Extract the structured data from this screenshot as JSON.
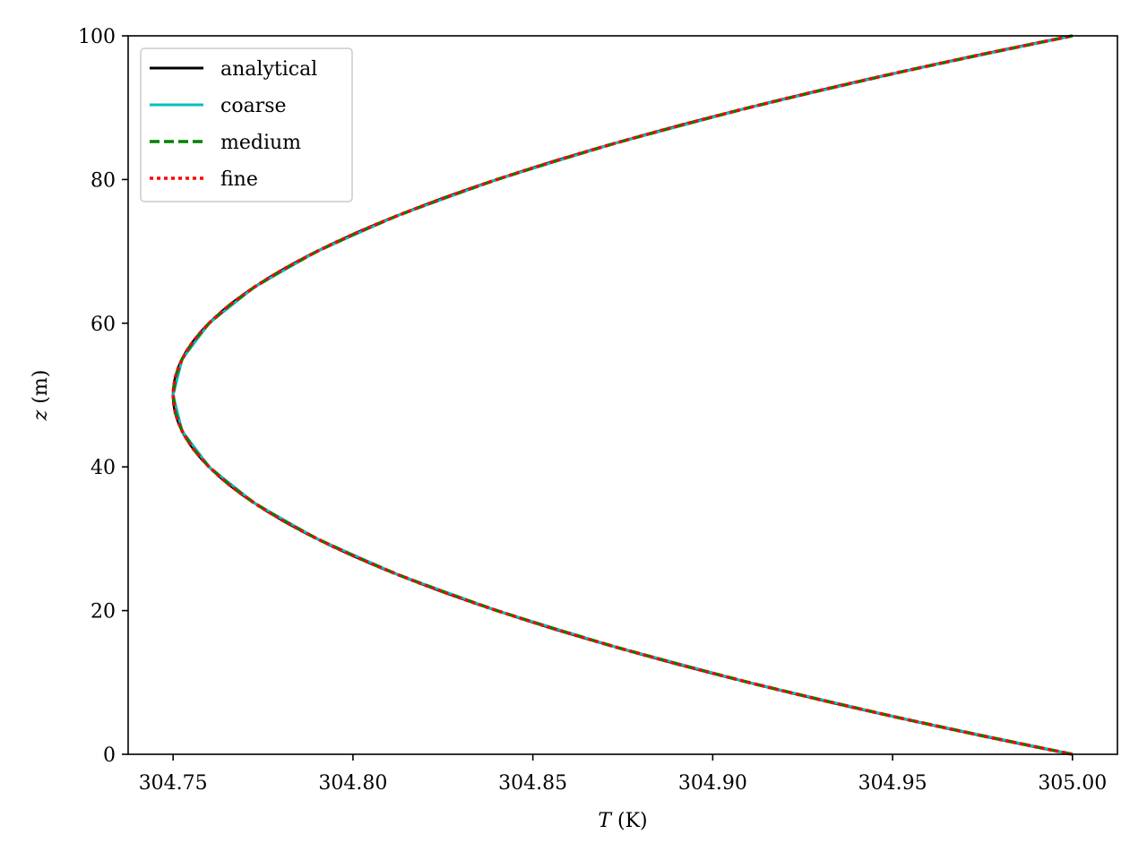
{
  "chart_data": {
    "type": "line",
    "xlabel_var": "T",
    "xlabel_unit": " (K)",
    "ylabel_var": "z",
    "ylabel_unit": " (m)",
    "xlim": [
      304.7375,
      305.0125
    ],
    "ylim": [
      0,
      100
    ],
    "xticks": [
      304.75,
      304.8,
      304.85,
      304.9,
      304.95,
      305.0
    ],
    "xtick_labels": [
      "304.75",
      "304.80",
      "304.85",
      "304.90",
      "304.95",
      "305.00"
    ],
    "yticks": [
      0,
      20,
      40,
      60,
      80,
      100
    ],
    "ytick_labels": [
      "0",
      "20",
      "40",
      "60",
      "80",
      "100"
    ],
    "grid": false,
    "legend_position": "top-left",
    "profile": "T = 305 - 0.25*(1 - ((z-50)/50)^2), z from 0 to 100 m",
    "series": [
      {
        "name": "analytical",
        "color": "#000000",
        "style": "solid",
        "z_step": 1
      },
      {
        "name": "coarse",
        "color": "#00bfbf",
        "style": "solid",
        "z_step": 5
      },
      {
        "name": "medium",
        "color": "#008000",
        "style": "dashed",
        "z_step": 2.5
      },
      {
        "name": "fine",
        "color": "#ff0000",
        "style": "dotted",
        "z_step": 1.25
      }
    ]
  }
}
